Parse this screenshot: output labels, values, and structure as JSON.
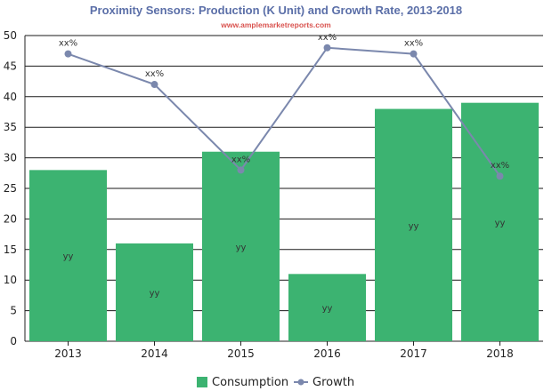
{
  "chart_data": {
    "type": "bar",
    "title": "Proximity Sensors: Production (K Unit) and Growth Rate, 2013-2018",
    "subtitle": "www.amplemarketreports.com",
    "categories": [
      "2013",
      "2014",
      "2015",
      "2016",
      "2017",
      "2018"
    ],
    "ylim": [
      0,
      50
    ],
    "yticks": [
      0,
      5,
      10,
      15,
      20,
      25,
      30,
      35,
      40,
      45,
      50
    ],
    "grid": true,
    "legend_position": "bottom-center",
    "series": [
      {
        "name": "Consumption",
        "type": "bar",
        "color": "#3cb371",
        "values": [
          28,
          16,
          31,
          11,
          38,
          39
        ],
        "labels": [
          "yy",
          "yy",
          "yy",
          "yy",
          "yy",
          "yy"
        ]
      },
      {
        "name": "Growth",
        "type": "line",
        "color": "#7b88ad",
        "values": [
          47,
          42,
          28,
          48,
          47,
          27
        ],
        "labels": [
          "xx%",
          "xx%",
          "xx%",
          "xx%",
          "xx%",
          "xx%"
        ]
      }
    ]
  }
}
